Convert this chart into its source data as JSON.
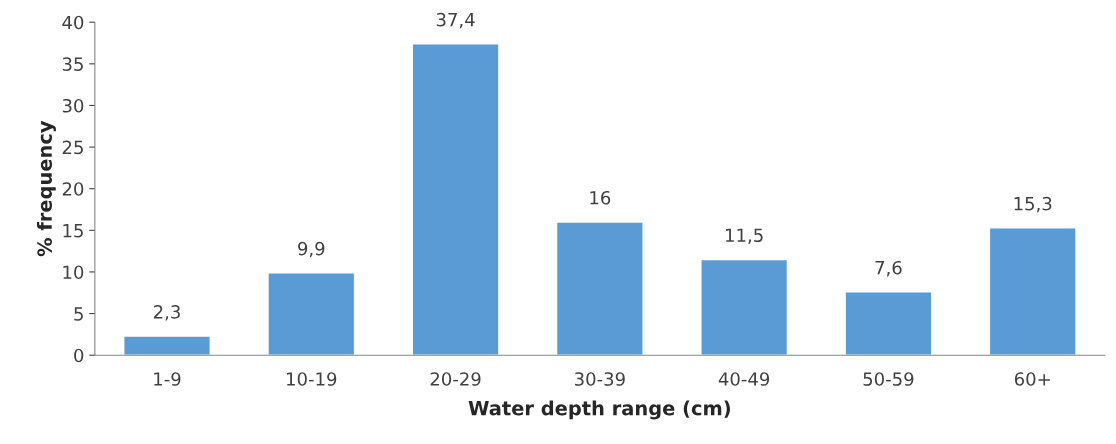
{
  "chart_data": {
    "type": "bar",
    "xlabel": "Water depth range (cm)",
    "ylabel": "% frequency",
    "categories": [
      "1-9",
      "10-19",
      "20-29",
      "30-39",
      "40-49",
      "50-59",
      "60+"
    ],
    "values": [
      2.3,
      9.9,
      37.4,
      16,
      11.5,
      7.6,
      15.3
    ],
    "value_labels": [
      "2,3",
      "9,9",
      "37,4",
      "16",
      "11,5",
      "7,6",
      "15,3"
    ],
    "color": "#5b9bd5",
    "ylim": [
      0,
      40
    ],
    "yticks": [
      0,
      5,
      10,
      15,
      20,
      25,
      30,
      35,
      40
    ],
    "grid": false,
    "legend": false
  }
}
